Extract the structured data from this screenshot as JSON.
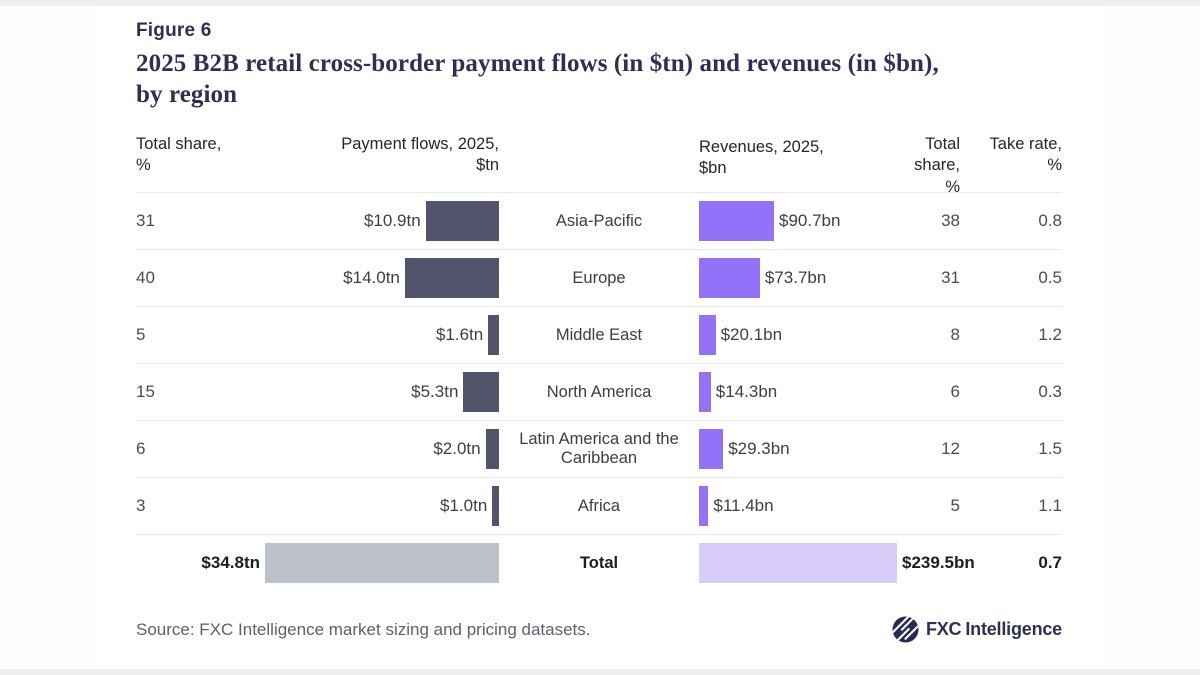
{
  "figure_label": "Figure 6",
  "title_lines": {
    "l1": "2025 B2B retail cross-border payment flows (in $tn) and revenues (in $bn),",
    "l2": "by region"
  },
  "header": {
    "share_left_l1": "Total share,",
    "share_left_l2": "%",
    "flows_l1": "Payment flows, 2025,",
    "flows_l2": "$tn",
    "revenues_l1": "Revenues, 2025,",
    "revenues_l2": "$bn",
    "share_right_l1": "Total share,",
    "share_right_l2": "%",
    "take_l1": "Take rate,",
    "take_l2": "%"
  },
  "chart_data": {
    "type": "bar",
    "title": "2025 B2B retail cross-border payment flows (in $tn) and revenues (in $bn), by region",
    "categories": [
      "Asia-Pacific",
      "Europe",
      "Middle East",
      "North America",
      "Latin America and the Caribbean",
      "Africa"
    ],
    "series": [
      {
        "name": "Payment flows total share, %",
        "values": [
          31,
          40,
          5,
          15,
          6,
          3
        ]
      },
      {
        "name": "Payment flows, 2025, $tn",
        "values": [
          10.9,
          14.0,
          1.6,
          5.3,
          2.0,
          1.0
        ]
      },
      {
        "name": "Revenues, 2025, $bn",
        "values": [
          90.7,
          73.7,
          20.1,
          14.3,
          29.3,
          11.4
        ]
      },
      {
        "name": "Revenues total share, %",
        "values": [
          38,
          31,
          8,
          6,
          12,
          5
        ]
      },
      {
        "name": "Take rate, %",
        "values": [
          0.8,
          0.5,
          1.2,
          0.3,
          1.5,
          1.1
        ]
      }
    ],
    "totals": {
      "payment_flows_tn": 34.8,
      "revenues_bn": 239.5,
      "take_rate_pct": 0.7
    },
    "layout_hint": "butterfly bars: payment flows grow leftward, revenues grow rightward",
    "legend_position": "none",
    "grid": "row separators only"
  },
  "rows": [
    {
      "share": "31",
      "flow": "$10.9tn",
      "region": "Asia-Pacific",
      "revenue": "$90.7bn",
      "rev_share": "38",
      "take": "0.8"
    },
    {
      "share": "40",
      "flow": "$14.0tn",
      "region": "Europe",
      "revenue": "$73.7bn",
      "rev_share": "31",
      "take": "0.5"
    },
    {
      "share": "5",
      "flow": "$1.6tn",
      "region": "Middle East",
      "revenue": "$20.1bn",
      "rev_share": "8",
      "take": "1.2"
    },
    {
      "share": "15",
      "flow": "$5.3tn",
      "region": "North America",
      "revenue": "$14.3bn",
      "rev_share": "6",
      "take": "0.3"
    },
    {
      "share": "6",
      "flow": "$2.0tn",
      "region": "Latin America and the Caribbean",
      "revenue": "$29.3bn",
      "rev_share": "12",
      "take": "1.5"
    },
    {
      "share": "3",
      "flow": "$1.0tn",
      "region": "Africa",
      "revenue": "$11.4bn",
      "rev_share": "5",
      "take": "1.1"
    }
  ],
  "total_row": {
    "flow": "$34.8tn",
    "region": "Total",
    "revenue": "$239.5bn",
    "take": "0.7"
  },
  "source": "Source: FXC Intelligence market sizing and pricing datasets.",
  "logo": {
    "part1": "FXC",
    "part2": "Intelligence"
  },
  "colors": {
    "accent_navy": "#2D3054",
    "payment_flow_bar": "#51546A",
    "revenue_bar": "#9471F9",
    "total_flow_bar": "#BDC1C9",
    "total_revenue_bar": "#D7CBFA",
    "row_divider": "#E9E9EC",
    "source_text": "#5C616E"
  }
}
